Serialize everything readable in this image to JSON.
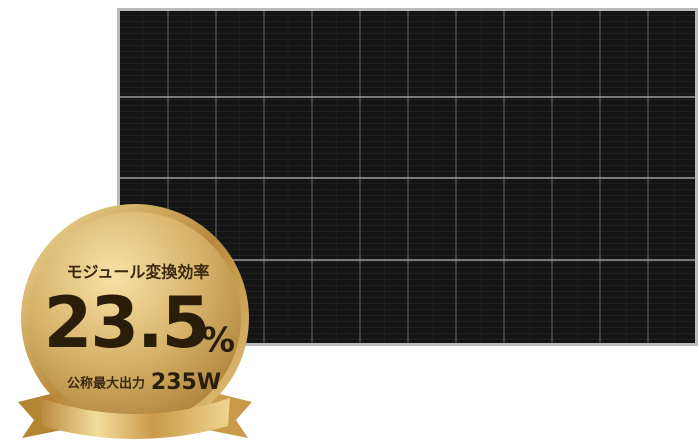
{
  "badge": {
    "label": "モジュール変換効率",
    "efficiency": "23.5",
    "efficiency_unit": "%",
    "power_label": "公称最大出力",
    "power": "235W"
  }
}
